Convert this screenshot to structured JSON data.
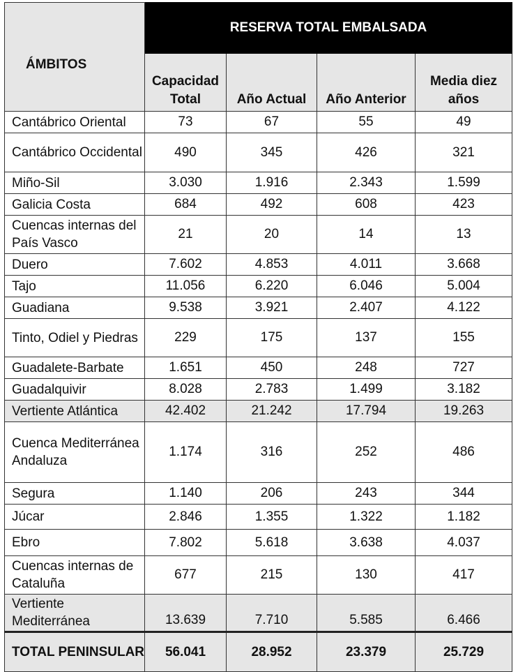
{
  "table": {
    "corner_header": "ÁMBITOS",
    "group_header": "RESERVA TOTAL EMBALSADA",
    "columns": [
      "Capacidad Total",
      "Año Actual",
      "Año Anterior",
      "Media diez años"
    ],
    "rows": [
      {
        "name": "Cantábrico Oriental",
        "values": [
          "73",
          "67",
          "55",
          "49"
        ]
      },
      {
        "name": "Cantábrico Occidental",
        "values": [
          "490",
          "345",
          "426",
          "321"
        ]
      },
      {
        "name": "Miño-Sil",
        "values": [
          "3.030",
          "1.916",
          "2.343",
          "1.599"
        ]
      },
      {
        "name": "Galicia Costa",
        "values": [
          "684",
          "492",
          "608",
          "423"
        ]
      },
      {
        "name": "Cuencas internas del País Vasco",
        "values": [
          "21",
          "20",
          "14",
          "13"
        ]
      },
      {
        "name": "Duero",
        "values": [
          "7.602",
          "4.853",
          "4.011",
          "3.668"
        ]
      },
      {
        "name": "Tajo",
        "values": [
          "11.056",
          "6.220",
          "6.046",
          "5.004"
        ]
      },
      {
        "name": "Guadiana",
        "values": [
          "9.538",
          "3.921",
          "2.407",
          "4.122"
        ]
      },
      {
        "name": "Tinto, Odiel y Piedras",
        "values": [
          "229",
          "175",
          "137",
          "155"
        ]
      },
      {
        "name": "Guadalete-Barbate",
        "values": [
          "1.651",
          "450",
          "248",
          "727"
        ]
      },
      {
        "name": "Guadalquivir",
        "values": [
          "8.028",
          "2.783",
          "1.499",
          "3.182"
        ]
      },
      {
        "name": "Vertiente Atlántica",
        "values": [
          "42.402",
          "21.242",
          "17.794",
          "19.263"
        ]
      },
      {
        "name": "Cuenca Mediterránea Andaluza",
        "values": [
          "1.174",
          "316",
          "252",
          "486"
        ]
      },
      {
        "name": "Segura",
        "values": [
          "1.140",
          "206",
          "243",
          "344"
        ]
      },
      {
        "name": "Júcar",
        "values": [
          "2.846",
          "1.355",
          "1.322",
          "1.182"
        ]
      },
      {
        "name": "Ebro",
        "values": [
          "7.802",
          "5.618",
          "3.638",
          "4.037"
        ]
      },
      {
        "name": "Cuencas internas de Cataluña",
        "values": [
          "677",
          "215",
          "130",
          "417"
        ]
      },
      {
        "name": "Vertiente Mediterránea",
        "values": [
          "13.639",
          "7.710",
          "5.585",
          "6.466"
        ]
      },
      {
        "name": "TOTAL PENINSULAR",
        "values": [
          "56.041",
          "28.952",
          "23.379",
          "25.729"
        ]
      }
    ]
  }
}
